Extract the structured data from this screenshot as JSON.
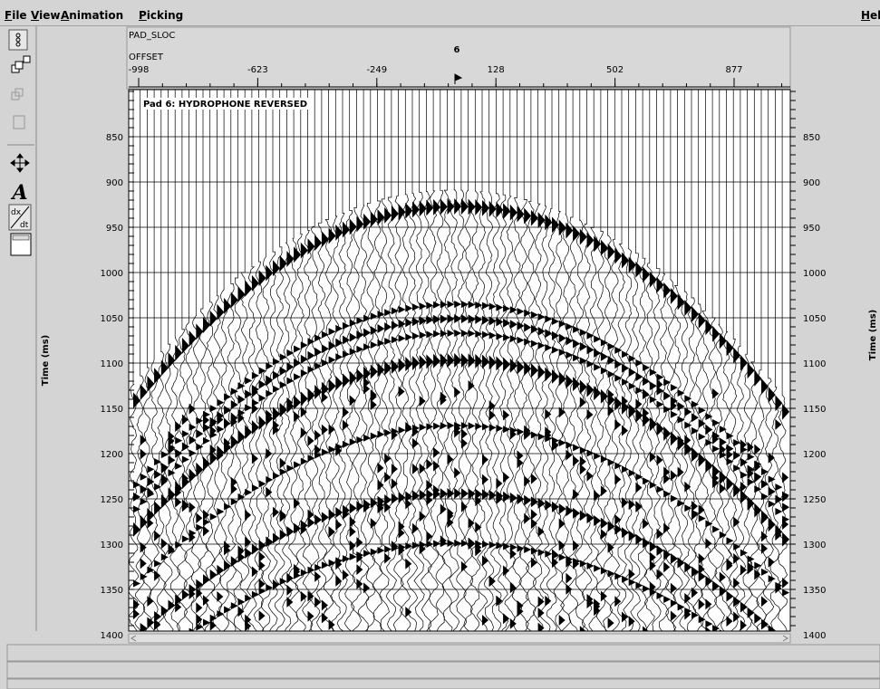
{
  "menu": {
    "items": [
      "File",
      "View",
      "Animation",
      "Picking"
    ],
    "help": "Help"
  },
  "toolbar": {
    "text_tool": "A",
    "derivative_top": "dx",
    "derivative_bottom": "dt"
  },
  "header": {
    "key_label": "PAD_SLOC",
    "key_value": "6",
    "axis_label": "OFFSET",
    "offset_ticks": [
      -998,
      -623,
      -249,
      128,
      502,
      877
    ]
  },
  "plot": {
    "title": "Pad 6: HYDROPHONE REVERSED",
    "y_label": "Time (ms)",
    "time_ticks": [
      850,
      900,
      950,
      1000,
      1050,
      1100,
      1150,
      1200,
      1250,
      1300,
      1350,
      1400
    ]
  }
}
